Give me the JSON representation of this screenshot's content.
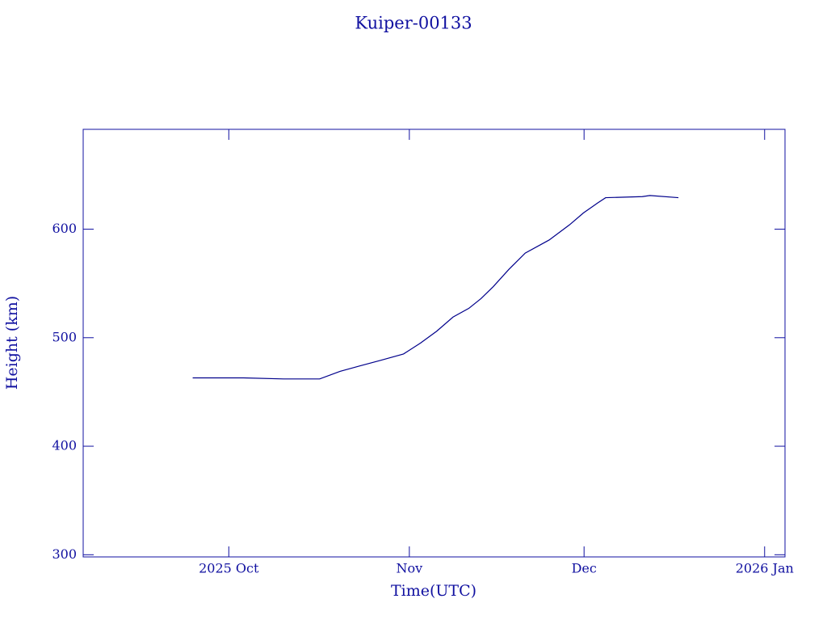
{
  "chart_data": {
    "type": "line",
    "title": "Kuiper-00133",
    "x_label": "Time(UTC)",
    "y_label": "Height (km)",
    "x": [
      -6.2,
      2.5,
      9.4,
      15.6,
      19.1,
      22.5,
      26,
      30,
      32.9,
      35.7,
      38.5,
      41.2,
      43.3,
      45.4,
      48.1,
      50.9,
      55,
      58.5,
      60.9,
      63.3,
      64.7,
      71,
      72.3,
      77.2
    ],
    "series": [
      {
        "name": "Height",
        "color": "#00008b",
        "values": [
          463,
          463,
          462,
          462,
          469,
          474,
          479,
          485,
          495,
          506,
          519,
          527,
          536,
          547,
          563,
          578,
          590,
          604,
          615,
          624,
          629,
          630,
          631,
          629
        ]
      }
    ],
    "xlim": [
      -25,
      95.5
    ],
    "xticks": [
      {
        "value": 0,
        "label": "2025 Oct"
      },
      {
        "value": 31,
        "label": "Nov"
      },
      {
        "value": 61,
        "label": "Dec"
      },
      {
        "value": 92,
        "label": "2026 Jan"
      }
    ],
    "ylim": [
      298,
      692
    ],
    "yticks": [
      300,
      400,
      500,
      600
    ]
  }
}
